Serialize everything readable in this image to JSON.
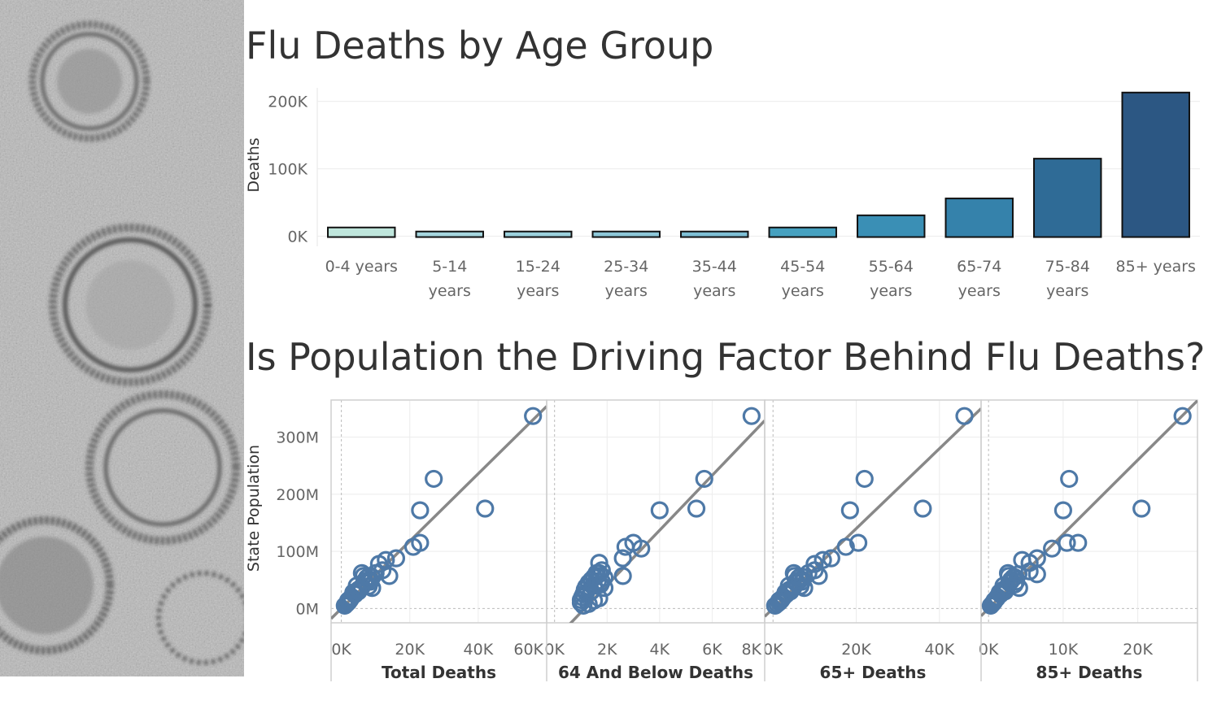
{
  "image_panel": {
    "icon": "influenza-virus-micrograph"
  },
  "chart_data": [
    {
      "type": "bar",
      "title": "Flu Deaths by Age Group",
      "xlabel": "",
      "ylabel": "Deaths",
      "ylim": [
        -15000,
        220000
      ],
      "yticks": [
        0,
        100000,
        200000
      ],
      "ytick_labels": [
        "0K",
        "100K",
        "200K"
      ],
      "categories": [
        [
          "0-4 years"
        ],
        [
          "5-14",
          "years"
        ],
        [
          "15-24",
          "years"
        ],
        [
          "25-34",
          "years"
        ],
        [
          "35-44",
          "years"
        ],
        [
          "45-54",
          "years"
        ],
        [
          "55-64",
          "years"
        ],
        [
          "65-74",
          "years"
        ],
        [
          "75-84",
          "years"
        ],
        [
          "85+ years"
        ]
      ],
      "values": [
        13000,
        7000,
        7000,
        7000,
        7000,
        13000,
        31000,
        56000,
        115000,
        213000
      ],
      "colors": [
        "#bfe6dc",
        "#a5d6df",
        "#9bd1dd",
        "#8dc7d8",
        "#7ebfd5",
        "#46a1c0",
        "#3a8fb5",
        "#3582ab",
        "#2f6b96",
        "#2c5783"
      ],
      "grid": true,
      "legend": "none"
    },
    {
      "type": "scatter",
      "title": "Is Population the Driving Factor Behind Flu Deaths?",
      "ylabel": "State Population",
      "ylim": [
        -25000000,
        365000000
      ],
      "yticks": [
        0,
        100000000,
        200000000,
        300000000
      ],
      "ytick_labels": [
        "0M",
        "100M",
        "200M",
        "300M"
      ],
      "marker_color": "#4e79a7",
      "trend_color": "#888888",
      "grid": true,
      "legend": "none",
      "panels": [
        {
          "xlabel": "Total Deaths",
          "xlim": [
            -3000,
            60000
          ],
          "xticks": [
            0,
            20000,
            40000,
            60000
          ],
          "xtick_labels": [
            "0K",
            "20K",
            "40K",
            "60K"
          ],
          "trend": {
            "slope": 5900,
            "intercept": 0
          },
          "points": [
            [
              56000,
              337000000
            ],
            [
              27000,
              227000000
            ],
            [
              23000,
              172000000
            ],
            [
              42000,
              175000000
            ],
            [
              23000,
              115000000
            ],
            [
              21000,
              108000000
            ],
            [
              16000,
              88000000
            ],
            [
              13000,
              85000000
            ],
            [
              11000,
              78000000
            ],
            [
              14000,
              57000000
            ],
            [
              12000,
              67000000
            ],
            [
              10000,
              62000000
            ],
            [
              9000,
              55000000
            ],
            [
              8000,
              50000000
            ],
            [
              7000,
              45000000
            ],
            [
              6000,
              38000000
            ],
            [
              5000,
              33000000
            ],
            [
              4000,
              25000000
            ],
            [
              3000,
              20000000
            ],
            [
              2500,
              15000000
            ],
            [
              2000,
              11000000
            ],
            [
              1500,
              8000000
            ],
            [
              1000,
              5000000
            ],
            [
              4500,
              40000000
            ],
            [
              6500,
              57000000
            ],
            [
              6000,
              62000000
            ],
            [
              7500,
              54000000
            ],
            [
              8500,
              47000000
            ],
            [
              9000,
              36000000
            ],
            [
              3500,
              28000000
            ],
            [
              5000,
              30000000
            ],
            [
              2000,
              14000000
            ],
            [
              2800,
              18000000
            ],
            [
              6800,
              48000000
            ],
            [
              8000,
              39000000
            ]
          ]
        },
        {
          "xlabel": "64 And Below Deaths",
          "xlim": [
            -300,
            8000
          ],
          "xticks": [
            0,
            2000,
            4000,
            6000,
            8000
          ],
          "xtick_labels": [
            "0K",
            "2K",
            "4K",
            "6K",
            "8K"
          ],
          "trend": {
            "slope": 48000,
            "intercept": -55000000
          },
          "points": [
            [
              7500,
              337000000
            ],
            [
              5700,
              227000000
            ],
            [
              4000,
              172000000
            ],
            [
              5400,
              175000000
            ],
            [
              3000,
              115000000
            ],
            [
              2700,
              108000000
            ],
            [
              3300,
              105000000
            ],
            [
              2600,
              88000000
            ],
            [
              1700,
              80000000
            ],
            [
              2600,
              57000000
            ],
            [
              1800,
              67000000
            ],
            [
              1600,
              62000000
            ],
            [
              1500,
              55000000
            ],
            [
              1400,
              50000000
            ],
            [
              1300,
              45000000
            ],
            [
              1200,
              38000000
            ],
            [
              1150,
              33000000
            ],
            [
              1100,
              25000000
            ],
            [
              1050,
              20000000
            ],
            [
              1000,
              15000000
            ],
            [
              1000,
              10000000
            ],
            [
              1100,
              5000000
            ],
            [
              1300,
              8000000
            ],
            [
              1500,
              40000000
            ],
            [
              1600,
              57000000
            ],
            [
              1700,
              62000000
            ],
            [
              1900,
              54000000
            ],
            [
              1800,
              47000000
            ],
            [
              1900,
              36000000
            ],
            [
              1200,
              28000000
            ],
            [
              1400,
              30000000
            ],
            [
              1500,
              14000000
            ],
            [
              1700,
              18000000
            ],
            [
              1650,
              48000000
            ],
            [
              1750,
              42000000
            ]
          ]
        },
        {
          "xlabel": "65+  Deaths",
          "xlim": [
            -2000,
            50000
          ],
          "xticks": [
            0,
            20000,
            40000
          ],
          "xtick_labels": [
            "0K",
            "20K",
            "40K"
          ],
          "trend": {
            "slope": 7000,
            "intercept": 0
          },
          "points": [
            [
              46000,
              337000000
            ],
            [
              22000,
              227000000
            ],
            [
              18500,
              172000000
            ],
            [
              36000,
              175000000
            ],
            [
              20500,
              115000000
            ],
            [
              17500,
              108000000
            ],
            [
              14000,
              88000000
            ],
            [
              12000,
              85000000
            ],
            [
              10000,
              78000000
            ],
            [
              11000,
              57000000
            ],
            [
              10000,
              67000000
            ],
            [
              8500,
              62000000
            ],
            [
              7500,
              55000000
            ],
            [
              6500,
              50000000
            ],
            [
              5500,
              45000000
            ],
            [
              5000,
              38000000
            ],
            [
              4000,
              33000000
            ],
            [
              3200,
              25000000
            ],
            [
              2500,
              20000000
            ],
            [
              2000,
              15000000
            ],
            [
              1500,
              11000000
            ],
            [
              1000,
              8000000
            ],
            [
              500,
              5000000
            ],
            [
              3800,
              40000000
            ],
            [
              5200,
              57000000
            ],
            [
              5000,
              62000000
            ],
            [
              6200,
              54000000
            ],
            [
              7000,
              47000000
            ],
            [
              7500,
              36000000
            ],
            [
              3000,
              28000000
            ],
            [
              4200,
              30000000
            ],
            [
              1500,
              14000000
            ],
            [
              2200,
              18000000
            ],
            [
              5600,
              48000000
            ],
            [
              6600,
              39000000
            ]
          ]
        },
        {
          "xlabel": "85+ Deaths",
          "xlim": [
            -1000,
            28000
          ],
          "xticks": [
            0,
            10000,
            20000
          ],
          "xtick_labels": [
            "0K",
            "10K",
            "20K"
          ],
          "trend": {
            "slope": 13000,
            "intercept": 0
          },
          "points": [
            [
              26000,
              337000000
            ],
            [
              10800,
              227000000
            ],
            [
              10000,
              172000000
            ],
            [
              20500,
              175000000
            ],
            [
              12000,
              115000000
            ],
            [
              10500,
              115000000
            ],
            [
              8500,
              105000000
            ],
            [
              6500,
              88000000
            ],
            [
              5500,
              80000000
            ],
            [
              4500,
              85000000
            ],
            [
              5500,
              65000000
            ],
            [
              4000,
              60000000
            ],
            [
              3500,
              55000000
            ],
            [
              3000,
              50000000
            ],
            [
              2800,
              45000000
            ],
            [
              2500,
              38000000
            ],
            [
              2000,
              33000000
            ],
            [
              1600,
              25000000
            ],
            [
              1200,
              20000000
            ],
            [
              900,
              15000000
            ],
            [
              700,
              11000000
            ],
            [
              500,
              8000000
            ],
            [
              300,
              5000000
            ],
            [
              2000,
              40000000
            ],
            [
              2700,
              57000000
            ],
            [
              2600,
              62000000
            ],
            [
              3300,
              54000000
            ],
            [
              3700,
              47000000
            ],
            [
              4100,
              36000000
            ],
            [
              1500,
              28000000
            ],
            [
              2200,
              30000000
            ],
            [
              800,
              14000000
            ],
            [
              1100,
              18000000
            ],
            [
              3000,
              48000000
            ],
            [
              3500,
              42000000
            ],
            [
              6500,
              60000000
            ]
          ]
        }
      ]
    }
  ]
}
